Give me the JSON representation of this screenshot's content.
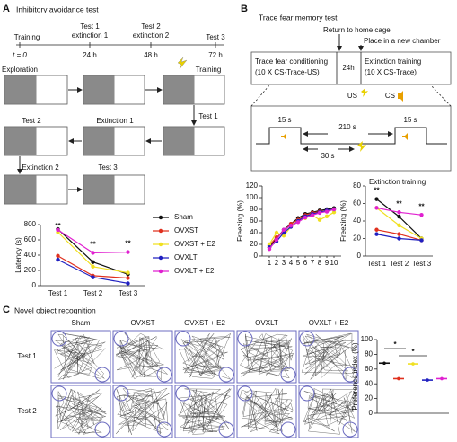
{
  "panel_a": {
    "letter": "A",
    "title": "Inhibitory avoidance test",
    "timeline": {
      "events": [
        "Training",
        "Test 1",
        "extinction 1",
        "Test 2",
        "extinction 2",
        "Test 3"
      ],
      "times": [
        "t = 0",
        "24 h",
        "48 h",
        "72 h"
      ]
    },
    "steps": [
      "Exploration",
      "Training",
      "Test 1",
      "Extinction 1",
      "Test 2",
      "Extinction 2",
      "Test 3"
    ]
  },
  "panel_b": {
    "letter": "B",
    "title": "Trace fear memory test",
    "notes": [
      "Return to home cage",
      "Place in a new chamber"
    ],
    "phases": [
      "Trace fear conditioning",
      "(10 X CS-Trace-US)",
      "24h",
      "Extinction training",
      "(10 X CS-Trace)"
    ],
    "stimuli": [
      "US",
      "CS"
    ],
    "durations": [
      "15 s",
      "210 s",
      "15 s",
      "30 s"
    ]
  },
  "panel_c": {
    "letter": "C",
    "title": "Novel object recognition",
    "columns": [
      "Sham",
      "OVXST",
      "OVXST + E2",
      "OVXLT",
      "OVXLT + E2"
    ],
    "rows": [
      "Test 1",
      "Test 2"
    ]
  },
  "chart_data": [
    {
      "type": "line",
      "y_label": "Latency (s)",
      "categories": [
        "Test 1",
        "Test 2",
        "Test 3"
      ],
      "ylim": [
        0,
        800
      ],
      "yticks": [
        0,
        200,
        400,
        600,
        800
      ],
      "legend": "right",
      "series": [
        {
          "name": "Sham",
          "color": "#111111",
          "values": [
            740,
            310,
            150
          ]
        },
        {
          "name": "OVXST",
          "color": "#e0301e",
          "values": [
            390,
            130,
            100
          ]
        },
        {
          "name": "OVXST + E2",
          "color": "#f0e020",
          "values": [
            700,
            250,
            170
          ]
        },
        {
          "name": "OVXLT",
          "color": "#2020c0",
          "values": [
            340,
            110,
            30
          ]
        },
        {
          "name": "OVXLT + E2",
          "color": "#e020d0",
          "values": [
            730,
            430,
            440
          ]
        }
      ],
      "annotations": [
        {
          "label": "**",
          "category": "Test 1"
        },
        {
          "label": "**",
          "category": "Test 2"
        },
        {
          "label": "**",
          "category": "Test 3"
        }
      ]
    },
    {
      "type": "line",
      "y_label": "Freezing (%)",
      "x": [
        1,
        2,
        3,
        4,
        5,
        6,
        7,
        8,
        9,
        10
      ],
      "xlim": [
        0,
        11
      ],
      "xticks": [
        1,
        2,
        3,
        4,
        5,
        6,
        7,
        8,
        9,
        10
      ],
      "ylim": [
        0,
        120
      ],
      "yticks": [
        0,
        20,
        40,
        60,
        80,
        100,
        120
      ],
      "series": [
        {
          "color": "#111111",
          "values": [
            15,
            30,
            45,
            55,
            65,
            72,
            75,
            78,
            80,
            82
          ]
        },
        {
          "color": "#e0301e",
          "values": [
            18,
            32,
            42,
            55,
            62,
            70,
            74,
            76,
            78,
            80
          ]
        },
        {
          "color": "#f0e020",
          "values": [
            20,
            40,
            35,
            50,
            60,
            65,
            70,
            62,
            68,
            75
          ]
        },
        {
          "color": "#2020c0",
          "values": [
            15,
            25,
            40,
            50,
            60,
            68,
            72,
            75,
            78,
            80
          ]
        },
        {
          "color": "#e020d0",
          "values": [
            12,
            28,
            45,
            52,
            58,
            66,
            70,
            74,
            76,
            80
          ]
        }
      ]
    },
    {
      "type": "line",
      "subtitle": "Extinction training",
      "y_label": "Freezing (%)",
      "categories": [
        "Test 1",
        "Test 2",
        "Test 3"
      ],
      "ylim": [
        0,
        80
      ],
      "yticks": [
        0,
        20,
        40,
        60,
        80
      ],
      "series": [
        {
          "color": "#111111",
          "values": [
            65,
            45,
            20
          ]
        },
        {
          "color": "#e0301e",
          "values": [
            30,
            25,
            18
          ]
        },
        {
          "color": "#f0e020",
          "values": [
            55,
            35,
            20
          ]
        },
        {
          "color": "#2020c0",
          "values": [
            25,
            20,
            18
          ]
        },
        {
          "color": "#e020d0",
          "values": [
            55,
            50,
            47
          ]
        }
      ],
      "annotations": [
        {
          "label": "**",
          "category": "Test 1"
        },
        {
          "label": "**",
          "category": "Test 2"
        },
        {
          "label": "**",
          "category": "Test 3"
        }
      ]
    },
    {
      "type": "dot",
      "y_label": "Preference index (%)",
      "ylim": [
        0,
        100
      ],
      "yticks": [
        0,
        20,
        40,
        60,
        80,
        100
      ],
      "values": [
        68,
        47,
        67,
        45,
        47
      ],
      "colors": [
        "#111111",
        "#e0301e",
        "#f0e020",
        "#2020c0",
        "#e020d0"
      ],
      "annotations": [
        "*",
        "*"
      ]
    }
  ]
}
